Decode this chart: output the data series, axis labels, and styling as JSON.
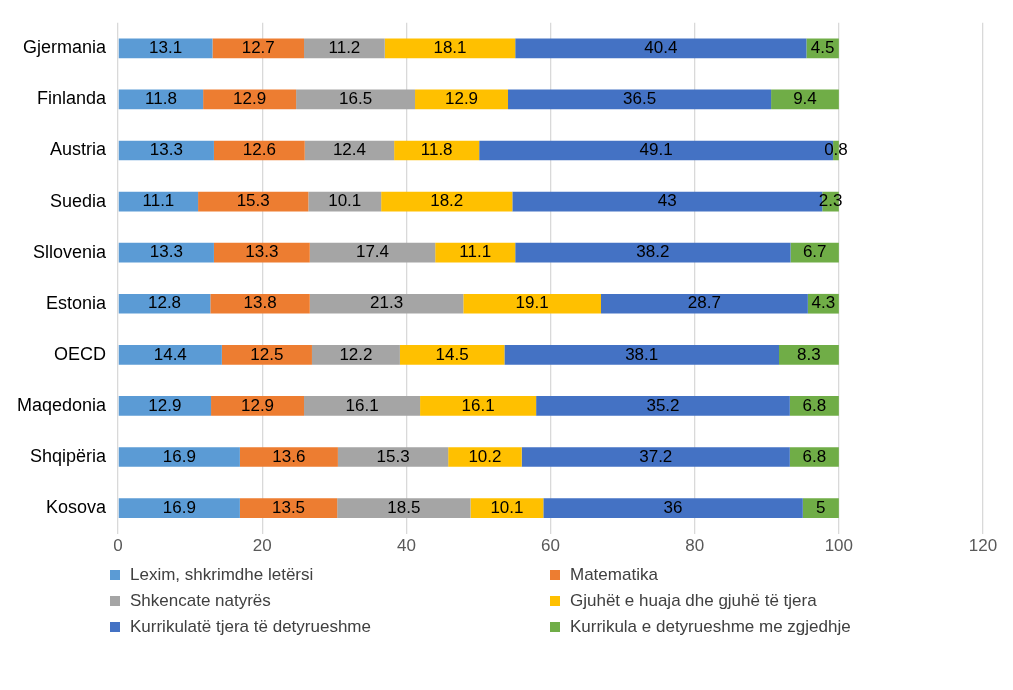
{
  "chart_data": {
    "type": "bar",
    "orientation": "horizontal",
    "stacked": true,
    "data_labels": true,
    "grid": "x",
    "legend": "bottom",
    "categories": [
      "Gjermania",
      "Finlanda",
      "Austria",
      "Suedia",
      "Sllovenia",
      "Estonia",
      "OECD",
      "Maqedonia",
      "Shqipëria",
      "Kosova"
    ],
    "xlim": [
      0,
      120
    ],
    "xticks": [
      0,
      20,
      40,
      60,
      80,
      100,
      120
    ],
    "series": [
      {
        "name": "Lexim, shkrimdhe letërsi",
        "color": "#5b9bd5",
        "values": [
          13.1,
          11.8,
          13.3,
          11.1,
          13.3,
          12.8,
          14.4,
          12.9,
          16.9,
          16.9
        ]
      },
      {
        "name": "Matematika",
        "color": "#ed7d31",
        "values": [
          12.7,
          12.9,
          12.6,
          15.3,
          13.3,
          13.8,
          12.5,
          12.9,
          13.6,
          13.5
        ]
      },
      {
        "name": "Shkencate natyrës",
        "color": "#a5a5a5",
        "values": [
          11.2,
          16.5,
          12.4,
          10.1,
          17.4,
          21.3,
          12.2,
          16.1,
          15.3,
          18.5
        ]
      },
      {
        "name": "Gjuhët e huaja dhe gjuhë të tjera",
        "color": "#ffc000",
        "values": [
          18.1,
          12.9,
          11.8,
          18.2,
          11.1,
          19.1,
          14.5,
          16.1,
          10.2,
          10.1
        ]
      },
      {
        "name": "Kurrikulatë tjera të detyrueshme",
        "color": "#4472c4",
        "values": [
          40.4,
          36.5,
          49.1,
          43,
          38.2,
          28.7,
          38.1,
          35.2,
          37.2,
          36
        ]
      },
      {
        "name": "Kurrikula e detyrueshme me zgjedhje",
        "color": "#70ad47",
        "values": [
          4.5,
          9.4,
          0.8,
          2.3,
          6.7,
          4.3,
          8.3,
          6.8,
          6.8,
          5
        ]
      }
    ]
  }
}
